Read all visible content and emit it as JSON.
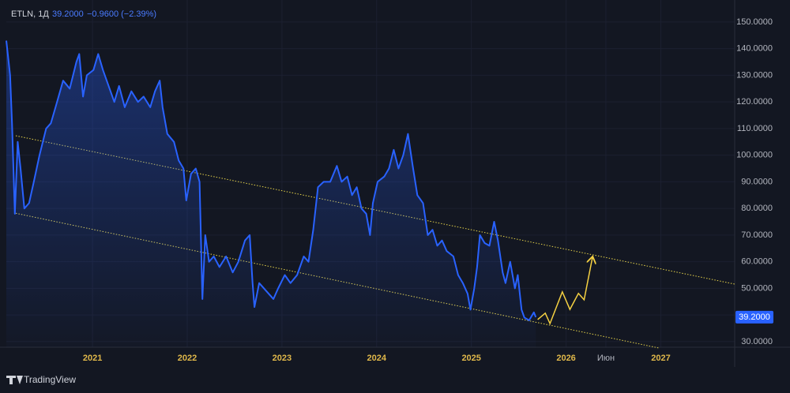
{
  "header": {
    "symbol": "ETLN, 1Д",
    "price": "39.2000",
    "change": "−0.9600 (−2.39%)"
  },
  "brand": "TradingView",
  "chart_data": {
    "type": "line",
    "series": [
      {
        "color": "#2962ff",
        "x": [
          2020.09,
          2020.13,
          2020.15,
          2020.18,
          2020.21,
          2020.24,
          2020.28,
          2020.33,
          2020.38,
          2020.44,
          2020.51,
          2020.56,
          2020.61,
          2020.69,
          2020.76,
          2020.83,
          2020.86,
          2020.9,
          2020.94,
          2021.01,
          2021.06,
          2021.11,
          2021.18,
          2021.23,
          2021.28,
          2021.34,
          2021.41,
          2021.48,
          2021.54,
          2021.61,
          2021.66,
          2021.71,
          2021.74,
          2021.79,
          2021.86,
          2021.91,
          2021.96,
          2021.99,
          2022.04,
          2022.09,
          2022.13,
          2022.16,
          2022.19,
          2022.23,
          2022.28,
          2022.34,
          2022.41,
          2022.48,
          2022.54,
          2022.61,
          2022.66,
          2022.69,
          2022.71,
          2022.76,
          2022.81,
          2022.86,
          2022.91,
          2022.96,
          2023.03,
          2023.09,
          2023.16,
          2023.23,
          2023.28,
          2023.33,
          2023.38,
          2023.44,
          2023.51,
          2023.58,
          2023.63,
          2023.69,
          2023.74,
          2023.79,
          2023.84,
          2023.89,
          2023.93,
          2023.96,
          2024.01,
          2024.08,
          2024.13,
          2024.18,
          2024.23,
          2024.28,
          2024.33,
          2024.38,
          2024.43,
          2024.49,
          2024.54,
          2024.59,
          2024.64,
          2024.69,
          2024.74,
          2024.81,
          2024.86,
          2024.91,
          2024.96,
          2024.99,
          2025.03,
          2025.06,
          2025.09,
          2025.14,
          2025.19,
          2025.24,
          2025.28,
          2025.33,
          2025.36,
          2025.41,
          2025.46,
          2025.49,
          2025.53,
          2025.56,
          2025.61,
          2025.66,
          2025.68
        ],
        "values": [
          143,
          130,
          112,
          78,
          105,
          95,
          80,
          82,
          90,
          100,
          110,
          112,
          118,
          128,
          125,
          135,
          138,
          122,
          130,
          132,
          138,
          132,
          125,
          120,
          126,
          118,
          124,
          120,
          122,
          118,
          124,
          128,
          118,
          108,
          105,
          98,
          95,
          83,
          93,
          95,
          90,
          46,
          70,
          60,
          62,
          58,
          62,
          56,
          60,
          68,
          70,
          52,
          43,
          52,
          50,
          48,
          46,
          50,
          55,
          52,
          55,
          62,
          60,
          72,
          88,
          90,
          90,
          96,
          90,
          92,
          85,
          88,
          80,
          78,
          70,
          82,
          90,
          92,
          95,
          102,
          95,
          100,
          108,
          96,
          85,
          82,
          70,
          72,
          66,
          68,
          64,
          62,
          55,
          52,
          48,
          42,
          50,
          58,
          70,
          67,
          66,
          75,
          68,
          56,
          52,
          60,
          50,
          55,
          42,
          39,
          38,
          41,
          39.2
        ]
      }
    ],
    "projection": {
      "color": "#f5d142",
      "x": [
        2025.7,
        2025.78,
        2025.83,
        2025.96,
        2026.04,
        2026.13,
        2026.19,
        2026.28
      ],
      "values": [
        38.3,
        40.7,
        36.8,
        48.7,
        42.1,
        48.1,
        45.7,
        62.0
      ]
    },
    "channel_lines": [
      {
        "color": "#e6d34a",
        "x": [
          2020.19,
          2027.78
        ],
        "values": [
          107.3,
          51.6
        ]
      },
      {
        "color": "#e6d34a",
        "x": [
          2020.19,
          2026.98
        ],
        "values": [
          78.2,
          27.6
        ]
      }
    ],
    "xlim": [
      2020.09,
      2027.78
    ],
    "xticks": [
      2021,
      2022,
      2023,
      2024,
      2025,
      2026,
      {
        "value": 2026.42,
        "label": "Июн"
      },
      2027
    ],
    "ylim": [
      27.9,
      155.9
    ],
    "yticks": [
      {
        "value": 30,
        "label": "30.0000"
      },
      {
        "value": 40,
        "label": "40.0000"
      },
      {
        "value": 50,
        "label": "50.0000"
      },
      {
        "value": 60,
        "label": "60.0000"
      },
      {
        "value": 70,
        "label": "70.0000"
      },
      {
        "value": 80,
        "label": "80.0000"
      },
      {
        "value": 90,
        "label": "90.0000"
      },
      {
        "value": 100,
        "label": "100.0000"
      },
      {
        "value": 110,
        "label": "110.0000"
      },
      {
        "value": 120,
        "label": "120.0000"
      },
      {
        "value": 130,
        "label": "130.0000"
      },
      {
        "value": 140,
        "label": "140.0000"
      },
      {
        "value": 150,
        "label": "150.0000"
      }
    ],
    "grid": true
  }
}
